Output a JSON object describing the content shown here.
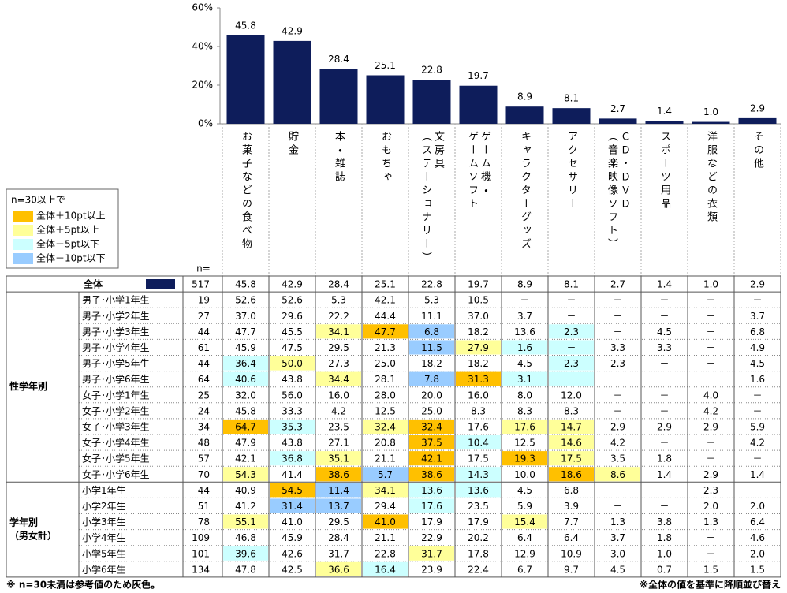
{
  "chart_data": {
    "type": "bar",
    "categories": [
      [
        "お菓子などの食べ物"
      ],
      [
        "貯金"
      ],
      [
        "本・雑誌"
      ],
      [
        "おもちゃ"
      ],
      [
        "文房具",
        "（ステーショナリー）"
      ],
      [
        "ゲーム機・",
        "ゲームソフト"
      ],
      [
        "キャラクターグッズ"
      ],
      [
        "アクセサリー"
      ],
      [
        "ＣＤ・ＤＶＤ",
        "（音楽映像ソフト）"
      ],
      [
        "スポーツ用品"
      ],
      [
        "洋服などの衣類"
      ],
      [
        "その他"
      ]
    ],
    "values": [
      45.8,
      42.9,
      28.4,
      25.1,
      22.8,
      19.7,
      8.9,
      8.1,
      2.7,
      1.4,
      1.0,
      2.9
    ],
    "value_labels": [
      "45.8",
      "42.9",
      "28.4",
      "25.1",
      "22.8",
      "19.7",
      "8.9",
      "8.1",
      "2.7",
      "1.4",
      "1.0",
      "2.9"
    ],
    "color": "#0E1D5B",
    "ylim": [
      0,
      60
    ],
    "yticks": [
      {
        "value": 0,
        "label": "0%"
      },
      {
        "value": 20,
        "label": "20%"
      },
      {
        "value": 40,
        "label": "40%"
      },
      {
        "value": 60,
        "label": "60%"
      }
    ]
  },
  "legend": {
    "title": "n=30以上で",
    "items": [
      {
        "label": "全体＋10pt以上",
        "color": "#FFC000"
      },
      {
        "label": "全体＋5pt以上",
        "color": "#FFFF99"
      },
      {
        "label": "全体－5pt以下",
        "color": "#CCFFFF"
      },
      {
        "label": "全体－10pt以下",
        "color": "#99CCFF"
      }
    ]
  },
  "table": {
    "n_header": "n=",
    "total": {
      "label": "全体",
      "n": "517",
      "cells": [
        "45.8",
        "42.9",
        "28.4",
        "25.1",
        "22.8",
        "19.7",
        "8.9",
        "8.1",
        "2.7",
        "1.4",
        "1.0",
        "2.9"
      ]
    },
    "groups": [
      {
        "label": [
          "性学年別"
        ],
        "rows": [
          {
            "label": "男子･小学1年生",
            "n": "19",
            "gray": true,
            "cells": [
              "52.6",
              "52.6",
              "5.3",
              "42.1",
              "5.3",
              "10.5",
              "－",
              "－",
              "－",
              "－",
              "－",
              "－"
            ]
          },
          {
            "label": "男子･小学2年生",
            "n": "27",
            "gray": true,
            "cells": [
              "37.0",
              "29.6",
              "22.2",
              "44.4",
              "11.1",
              "37.0",
              "3.7",
              "－",
              "－",
              "－",
              "－",
              "3.7"
            ]
          },
          {
            "label": "男子･小学3年生",
            "n": "44",
            "cells": [
              "47.7",
              "45.5",
              "34.1",
              "47.7",
              "6.8",
              "18.2",
              "13.6",
              "2.3",
              "－",
              "4.5",
              "－",
              "6.8"
            ],
            "highlight": {
              "2": 1,
              "3": 0,
              "4": 3,
              "7": 2
            }
          },
          {
            "label": "男子･小学4年生",
            "n": "61",
            "cells": [
              "45.9",
              "47.5",
              "29.5",
              "21.3",
              "11.5",
              "27.9",
              "1.6",
              "－",
              "3.3",
              "3.3",
              "－",
              "4.9"
            ],
            "highlight": {
              "4": 3,
              "5": 1,
              "6": 2,
              "7": 2
            }
          },
          {
            "label": "男子･小学5年生",
            "n": "44",
            "cells": [
              "36.4",
              "50.0",
              "27.3",
              "25.0",
              "18.2",
              "18.2",
              "4.5",
              "2.3",
              "2.3",
              "－",
              "－",
              "4.5"
            ],
            "highlight": {
              "0": 2,
              "1": 1,
              "7": 2
            }
          },
          {
            "label": "男子･小学6年生",
            "n": "64",
            "cells": [
              "40.6",
              "43.8",
              "34.4",
              "28.1",
              "7.8",
              "31.3",
              "3.1",
              "－",
              "－",
              "－",
              "－",
              "1.6"
            ],
            "highlight": {
              "0": 2,
              "2": 1,
              "4": 3,
              "5": 0,
              "6": 2,
              "7": 2
            }
          },
          {
            "label": "女子･小学1年生",
            "n": "25",
            "gray": true,
            "cells": [
              "32.0",
              "56.0",
              "16.0",
              "28.0",
              "20.0",
              "16.0",
              "8.0",
              "12.0",
              "－",
              "－",
              "4.0",
              "－"
            ]
          },
          {
            "label": "女子･小学2年生",
            "n": "24",
            "gray": true,
            "cells": [
              "45.8",
              "33.3",
              "4.2",
              "12.5",
              "25.0",
              "8.3",
              "8.3",
              "8.3",
              "－",
              "－",
              "4.2",
              "－"
            ]
          },
          {
            "label": "女子･小学3年生",
            "n": "34",
            "cells": [
              "64.7",
              "35.3",
              "23.5",
              "32.4",
              "32.4",
              "17.6",
              "17.6",
              "14.7",
              "2.9",
              "2.9",
              "2.9",
              "5.9"
            ],
            "highlight": {
              "0": 0,
              "1": 2,
              "3": 1,
              "4": 0,
              "6": 1,
              "7": 1
            }
          },
          {
            "label": "女子･小学4年生",
            "n": "48",
            "cells": [
              "47.9",
              "43.8",
              "27.1",
              "20.8",
              "37.5",
              "10.4",
              "12.5",
              "14.6",
              "4.2",
              "－",
              "－",
              "4.2"
            ],
            "highlight": {
              "4": 0,
              "5": 2,
              "7": 1
            }
          },
          {
            "label": "女子･小学5年生",
            "n": "57",
            "cells": [
              "42.1",
              "36.8",
              "35.1",
              "21.1",
              "42.1",
              "17.5",
              "19.3",
              "17.5",
              "3.5",
              "1.8",
              "－",
              "－"
            ],
            "highlight": {
              "1": 2,
              "2": 1,
              "4": 0,
              "6": 0,
              "7": 1
            }
          },
          {
            "label": "女子･小学6年生",
            "n": "70",
            "cells": [
              "54.3",
              "41.4",
              "38.6",
              "5.7",
              "38.6",
              "14.3",
              "10.0",
              "18.6",
              "8.6",
              "1.4",
              "2.9",
              "1.4"
            ],
            "highlight": {
              "0": 1,
              "2": 0,
              "3": 3,
              "4": 0,
              "5": 2,
              "7": 0,
              "8": 1
            }
          }
        ]
      },
      {
        "label": [
          "学年別",
          "（男女計）"
        ],
        "rows": [
          {
            "label": "小学1年生",
            "n": "44",
            "cells": [
              "40.9",
              "54.5",
              "11.4",
              "34.1",
              "13.6",
              "13.6",
              "4.5",
              "6.8",
              "－",
              "－",
              "2.3",
              "－"
            ],
            "highlight": {
              "1": 0,
              "2": 3,
              "3": 1,
              "4": 2,
              "5": 2
            }
          },
          {
            "label": "小学2年生",
            "n": "51",
            "cells": [
              "41.2",
              "31.4",
              "13.7",
              "29.4",
              "17.6",
              "23.5",
              "5.9",
              "3.9",
              "－",
              "－",
              "2.0",
              "2.0"
            ],
            "highlight": {
              "1": 3,
              "2": 3,
              "4": 2
            }
          },
          {
            "label": "小学3年生",
            "n": "78",
            "cells": [
              "55.1",
              "41.0",
              "29.5",
              "41.0",
              "17.9",
              "17.9",
              "15.4",
              "7.7",
              "1.3",
              "3.8",
              "1.3",
              "6.4"
            ],
            "highlight": {
              "0": 1,
              "3": 0,
              "6": 1
            }
          },
          {
            "label": "小学4年生",
            "n": "109",
            "cells": [
              "46.8",
              "45.9",
              "28.4",
              "21.1",
              "22.9",
              "20.2",
              "6.4",
              "6.4",
              "3.7",
              "1.8",
              "－",
              "4.6"
            ]
          },
          {
            "label": "小学5年生",
            "n": "101",
            "cells": [
              "39.6",
              "42.6",
              "31.7",
              "22.8",
              "31.7",
              "17.8",
              "12.9",
              "10.9",
              "3.0",
              "1.0",
              "－",
              "2.0"
            ],
            "highlight": {
              "0": 2,
              "4": 1
            }
          },
          {
            "label": "小学6年生",
            "n": "134",
            "cells": [
              "47.8",
              "42.5",
              "36.6",
              "16.4",
              "23.9",
              "22.4",
              "6.7",
              "9.7",
              "4.5",
              "0.7",
              "1.5",
              "1.5"
            ],
            "highlight": {
              "2": 1,
              "3": 2
            }
          }
        ]
      }
    ]
  },
  "notes": {
    "left": "※ n=30未満は参考値のため灰色。",
    "right": "※全体の値を基準に降順並び替え"
  }
}
